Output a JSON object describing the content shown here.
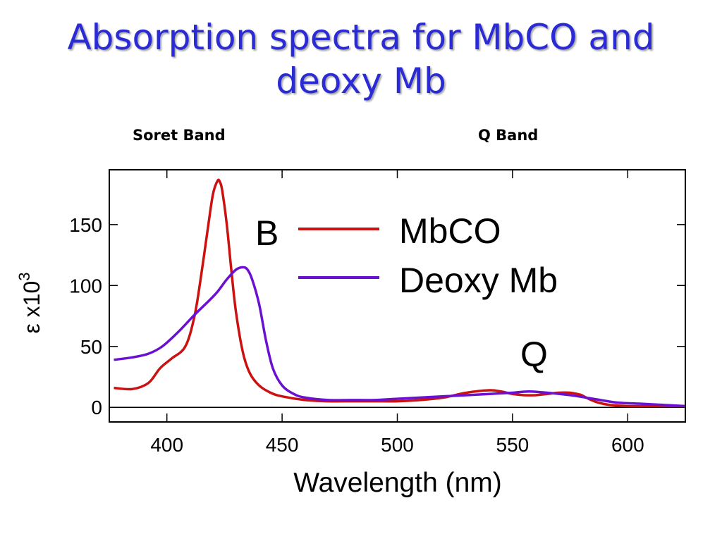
{
  "slide": {
    "title_line1": "Absorption spectra for MbCO and",
    "title_line2": "deoxy Mb",
    "title_color": "#2b2bd6"
  },
  "bands": {
    "soret": "Soret Band",
    "q": "Q Band"
  },
  "chart_data": {
    "type": "line",
    "xlabel": "Wavelength (nm)",
    "ylabel_main": "ε  x10",
    "ylabel_exp": "3",
    "xlim": [
      375,
      625
    ],
    "ylim": [
      -12,
      195
    ],
    "xticks": [
      400,
      450,
      500,
      550,
      600
    ],
    "yticks": [
      0,
      50,
      100,
      150
    ],
    "grid": false,
    "legend_position": "top-right",
    "annotations": [
      "B",
      "Q"
    ],
    "series": [
      {
        "name": "MbCO",
        "color": "#cc1111",
        "x": [
          377,
          385,
          392,
          397,
          402,
          408,
          412,
          415,
          418,
          420,
          422,
          423,
          424,
          426,
          428,
          430,
          433,
          436,
          440,
          445,
          450,
          460,
          470,
          480,
          490,
          500,
          510,
          520,
          530,
          540,
          545,
          550,
          555,
          560,
          565,
          570,
          575,
          578,
          580,
          583,
          587,
          592,
          600,
          610,
          620,
          625
        ],
        "y": [
          16,
          15,
          20,
          32,
          40,
          50,
          75,
          110,
          150,
          175,
          186,
          185,
          178,
          150,
          112,
          78,
          45,
          28,
          18,
          12,
          9,
          6,
          5,
          5,
          5,
          5,
          6,
          8,
          12,
          14,
          13,
          11,
          10,
          10,
          11,
          12,
          12,
          11,
          10,
          7,
          4,
          2,
          1,
          1,
          1,
          1
        ]
      },
      {
        "name": "Deoxy Mb",
        "color": "#6a10d0",
        "x": [
          377,
          385,
          392,
          398,
          405,
          412,
          418,
          422,
          426,
          430,
          433,
          435,
          437,
          440,
          443,
          446,
          450,
          455,
          460,
          470,
          480,
          490,
          500,
          510,
          520,
          530,
          540,
          550,
          557,
          565,
          575,
          585,
          595,
          605,
          615,
          625
        ],
        "y": [
          39,
          41,
          44,
          50,
          62,
          76,
          87,
          95,
          105,
          113,
          115,
          113,
          105,
          85,
          55,
          32,
          18,
          11,
          8,
          6,
          6,
          6,
          7,
          8,
          9,
          10,
          11,
          12,
          13,
          12,
          10,
          7,
          4,
          3,
          2,
          1
        ]
      }
    ]
  }
}
